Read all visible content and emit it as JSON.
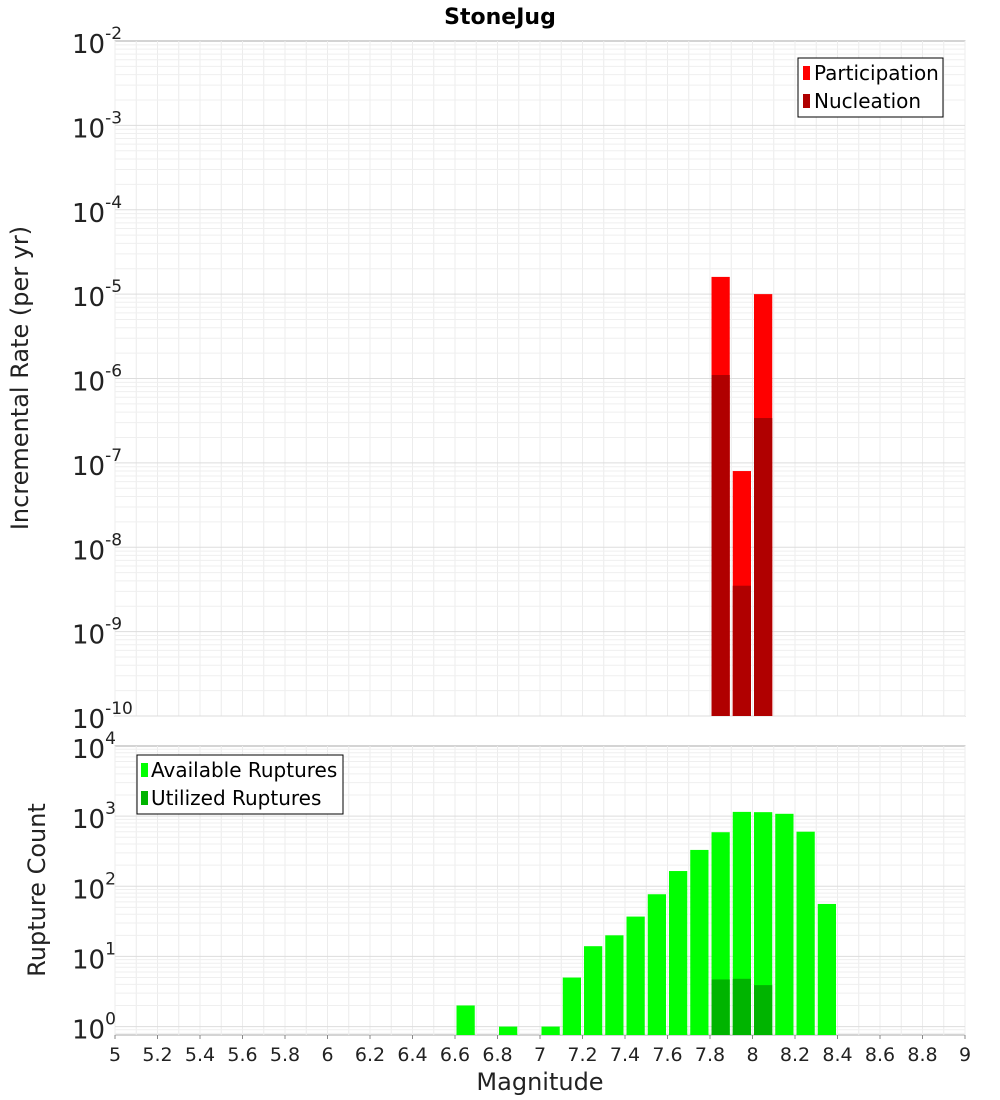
{
  "chart_data": [
    {
      "type": "bar",
      "title": "StoneJug",
      "ylabel": "Incremental Rate (per yr)",
      "xlabel": "",
      "xlim": [
        5,
        9
      ],
      "ylim_exponents": [
        -10,
        -2
      ],
      "yscale": "log",
      "y_tick_labels": [
        {
          "base": "10",
          "exp": "-10",
          "value": -10
        },
        {
          "base": "10",
          "exp": "-9",
          "value": -9
        },
        {
          "base": "10",
          "exp": "-8",
          "value": -8
        },
        {
          "base": "10",
          "exp": "-7",
          "value": -7
        },
        {
          "base": "10",
          "exp": "-6",
          "value": -6
        },
        {
          "base": "10",
          "exp": "-5",
          "value": -5
        },
        {
          "base": "10",
          "exp": "-4",
          "value": -4
        },
        {
          "base": "10",
          "exp": "-3",
          "value": -3
        },
        {
          "base": "10",
          "exp": "-2",
          "value": -2
        }
      ],
      "bin_width": 0.1,
      "legend": {
        "placement": "top-right",
        "entries": [
          {
            "label": "Participation",
            "color": "#ff0000"
          },
          {
            "label": "Nucleation",
            "color": "#b00000"
          }
        ]
      },
      "series": [
        {
          "name": "Participation",
          "color": "#ff0000",
          "x": [
            7.85,
            7.95,
            8.05
          ],
          "values": [
            1.6e-05,
            8e-08,
            1e-05
          ]
        },
        {
          "name": "Nucleation",
          "color": "#b00000",
          "x": [
            7.85,
            7.95,
            8.05
          ],
          "values": [
            1.1e-06,
            3.5e-09,
            3.4e-07
          ]
        }
      ]
    },
    {
      "type": "bar",
      "title": "",
      "ylabel": "Rupture Count",
      "xlabel": "Magnitude",
      "xlim": [
        5,
        9
      ],
      "ylim_exponents": [
        -0.12,
        4
      ],
      "yscale": "log",
      "y_tick_labels": [
        {
          "base": "10",
          "exp": "0",
          "value": 0
        },
        {
          "base": "10",
          "exp": "1",
          "value": 1
        },
        {
          "base": "10",
          "exp": "2",
          "value": 2
        },
        {
          "base": "10",
          "exp": "3",
          "value": 3
        },
        {
          "base": "10",
          "exp": "4",
          "value": 4
        }
      ],
      "x_tick_labels": [
        "5",
        "5.2",
        "5.4",
        "5.6",
        "5.8",
        "6",
        "6.2",
        "6.4",
        "6.6",
        "6.8",
        "7",
        "7.2",
        "7.4",
        "7.6",
        "7.8",
        "8",
        "8.2",
        "8.4",
        "8.6",
        "8.8",
        "9"
      ],
      "x_ticks": [
        5,
        5.2,
        5.4,
        5.6,
        5.8,
        6,
        6.2,
        6.4,
        6.6,
        6.8,
        7,
        7.2,
        7.4,
        7.6,
        7.8,
        8,
        8.2,
        8.4,
        8.6,
        8.8,
        9
      ],
      "bin_width": 0.1,
      "legend": {
        "placement": "top-left",
        "entries": [
          {
            "label": "Available Ruptures",
            "color": "#00ff00"
          },
          {
            "label": "Utilized Ruptures",
            "color": "#00b400"
          }
        ]
      },
      "series": [
        {
          "name": "Available Ruptures",
          "color": "#00ff00",
          "x": [
            6.65,
            6.85,
            7.05,
            7.15,
            7.25,
            7.35,
            7.45,
            7.55,
            7.65,
            7.75,
            7.85,
            7.95,
            8.05,
            8.15,
            8.25,
            8.35
          ],
          "values": [
            2,
            1,
            1,
            5,
            14,
            20,
            37,
            77,
            165,
            330,
            590,
            1150,
            1140,
            1080,
            600,
            56
          ]
        },
        {
          "name": "Utilized Ruptures",
          "color": "#00b400",
          "x": [
            7.85,
            7.95,
            8.05
          ],
          "values": [
            4.7,
            4.8,
            3.9
          ]
        }
      ]
    }
  ]
}
